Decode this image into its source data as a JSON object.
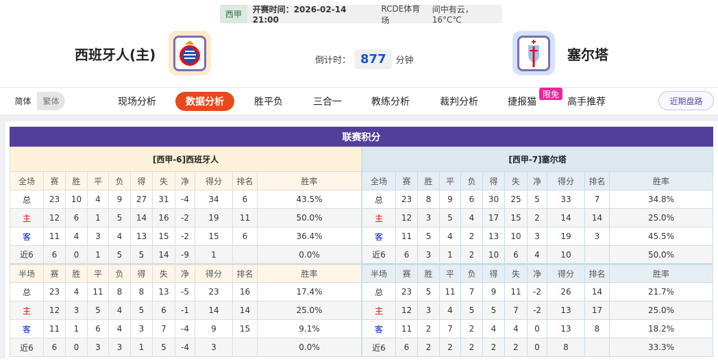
{
  "match": {
    "league": "西甲",
    "time_label": "开赛时间：2026-02-14 21:00",
    "venue": "RCDE体育场",
    "weather": "间中有云，16°C℃",
    "home": {
      "name": "西班牙人(主)",
      "logo": "espanyol-crest"
    },
    "away": {
      "name": "塞尔塔",
      "logo": "celta-crest"
    },
    "countdown_label": "倒计时：",
    "countdown_value": "877",
    "countdown_unit": "分钟"
  },
  "nav": {
    "simplified": "简体",
    "traditional": "繁体",
    "tabs": [
      "现场分析",
      "数据分析",
      "胜平负",
      "三合一",
      "教练分析",
      "裁判分析",
      "捷报猫",
      "高手推荐"
    ],
    "active_tab": "数据分析",
    "free_badge": "限免",
    "recent": "近期盘路"
  },
  "colors": {
    "accent": "#523f9c",
    "active_tab": "#e8491d",
    "home_label": "#e00000",
    "away_label": "#0018d0"
  },
  "standings": {
    "title": "联赛积分",
    "columns_full": [
      "全场",
      "赛",
      "胜",
      "平",
      "负",
      "得",
      "失",
      "净",
      "得分",
      "排名",
      "胜率"
    ],
    "columns_half": [
      "半场",
      "赛",
      "胜",
      "平",
      "负",
      "得",
      "失",
      "净",
      "得分",
      "排名",
      "胜率"
    ],
    "home": {
      "header": "[西甲-6]西班牙人",
      "full": [
        [
          "总",
          "23",
          "10",
          "4",
          "9",
          "27",
          "31",
          "-4",
          "34",
          "6",
          "43.5%"
        ],
        [
          "主",
          "12",
          "6",
          "1",
          "5",
          "14",
          "16",
          "-2",
          "19",
          "11",
          "50.0%"
        ],
        [
          "客",
          "11",
          "4",
          "3",
          "4",
          "13",
          "15",
          "-2",
          "15",
          "6",
          "36.4%"
        ],
        [
          "近6",
          "6",
          "0",
          "1",
          "5",
          "5",
          "14",
          "-9",
          "1",
          "",
          "0.0%"
        ]
      ],
      "half": [
        [
          "总",
          "23",
          "4",
          "11",
          "8",
          "8",
          "13",
          "-5",
          "23",
          "16",
          "17.4%"
        ],
        [
          "主",
          "12",
          "3",
          "5",
          "4",
          "5",
          "6",
          "-1",
          "14",
          "14",
          "25.0%"
        ],
        [
          "客",
          "11",
          "1",
          "6",
          "4",
          "3",
          "7",
          "-4",
          "9",
          "15",
          "9.1%"
        ],
        [
          "近6",
          "6",
          "0",
          "3",
          "3",
          "1",
          "5",
          "-4",
          "3",
          "",
          "0.0%"
        ]
      ]
    },
    "away": {
      "header": "[西甲-7]塞尔塔",
      "full": [
        [
          "总",
          "23",
          "8",
          "9",
          "6",
          "30",
          "25",
          "5",
          "33",
          "7",
          "34.8%"
        ],
        [
          "主",
          "12",
          "3",
          "5",
          "4",
          "17",
          "15",
          "2",
          "14",
          "14",
          "25.0%"
        ],
        [
          "客",
          "11",
          "5",
          "4",
          "2",
          "13",
          "10",
          "3",
          "19",
          "3",
          "45.5%"
        ],
        [
          "近6",
          "6",
          "3",
          "1",
          "2",
          "10",
          "6",
          "4",
          "10",
          "",
          "50.0%"
        ]
      ],
      "half": [
        [
          "总",
          "23",
          "5",
          "11",
          "7",
          "9",
          "11",
          "-2",
          "26",
          "14",
          "21.7%"
        ],
        [
          "主",
          "12",
          "3",
          "4",
          "5",
          "5",
          "7",
          "-2",
          "13",
          "17",
          "25.0%"
        ],
        [
          "客",
          "11",
          "2",
          "7",
          "2",
          "4",
          "4",
          "0",
          "13",
          "8",
          "18.2%"
        ],
        [
          "近6",
          "6",
          "2",
          "2",
          "2",
          "2",
          "2",
          "0",
          "8",
          "",
          "33.3%"
        ]
      ]
    }
  }
}
